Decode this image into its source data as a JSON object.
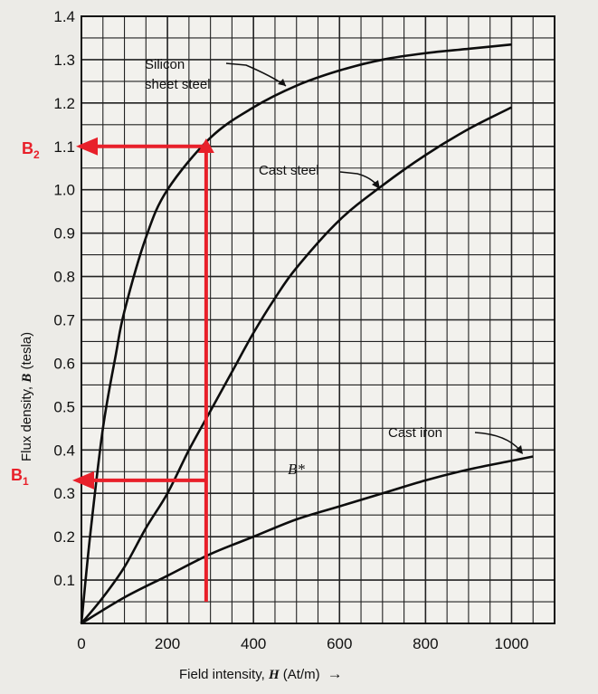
{
  "chart_data": {
    "type": "line",
    "xlabel_prefix": "Field intensity, ",
    "xlabel_var": "H",
    "xlabel_unit": " (At/m)",
    "xlabel_arrow": "→",
    "ylabel_prefix": "Flux density, ",
    "ylabel_var": "B",
    "ylabel_unit": " (tesla)",
    "xlim": [
      0,
      1100
    ],
    "ylim": [
      0,
      1.4
    ],
    "x_ticks": [
      "0",
      "200",
      "400",
      "600",
      "800",
      "1000"
    ],
    "x_tick_values": [
      0,
      200,
      400,
      600,
      800,
      1000
    ],
    "y_ticks": [
      "0.1",
      "0.2",
      "0.3",
      "0.4",
      "0.5",
      "0.6",
      "0.7",
      "0.8",
      "0.9",
      "1.0",
      "1.1",
      "1.2",
      "1.3",
      "1.4"
    ],
    "y_tick_values": [
      0.1,
      0.2,
      0.3,
      0.4,
      0.5,
      0.6,
      0.7,
      0.8,
      0.9,
      1.0,
      1.1,
      1.2,
      1.3,
      1.4
    ],
    "grid": true,
    "series": [
      {
        "name": "Silicon sheet steel",
        "name_line1": "Silicon",
        "name_line2": "sheet steel",
        "x": [
          0,
          20,
          50,
          80,
          100,
          150,
          200,
          300,
          400,
          500,
          600,
          700,
          800,
          900,
          1000
        ],
        "y": [
          0,
          0.2,
          0.45,
          0.62,
          0.72,
          0.89,
          1.0,
          1.12,
          1.19,
          1.24,
          1.275,
          1.3,
          1.315,
          1.325,
          1.335
        ]
      },
      {
        "name": "Cast steel",
        "x": [
          0,
          50,
          100,
          150,
          200,
          250,
          300,
          350,
          400,
          450,
          500,
          600,
          700,
          800,
          900,
          1000
        ],
        "y": [
          0,
          0.06,
          0.13,
          0.22,
          0.3,
          0.4,
          0.49,
          0.58,
          0.67,
          0.75,
          0.82,
          0.93,
          1.01,
          1.08,
          1.14,
          1.19
        ]
      },
      {
        "name": "Cast iron",
        "x": [
          0,
          100,
          200,
          300,
          400,
          500,
          600,
          700,
          800,
          900,
          1000,
          1050
        ],
        "y": [
          0,
          0.06,
          0.11,
          0.16,
          0.2,
          0.24,
          0.27,
          0.3,
          0.33,
          0.355,
          0.375,
          0.385
        ]
      }
    ],
    "annotations": {
      "b_star": "B*",
      "b_star_at": [
        460,
        0.3
      ],
      "vertical_line_x": 290,
      "vertical_line_from": 0.05,
      "vertical_line_to": 1.11,
      "b1": {
        "letter": "B",
        "sub": "1",
        "value": 0.33
      },
      "b2": {
        "letter": "B",
        "sub": "2",
        "value": 1.1
      },
      "color": "#e8202a"
    }
  }
}
